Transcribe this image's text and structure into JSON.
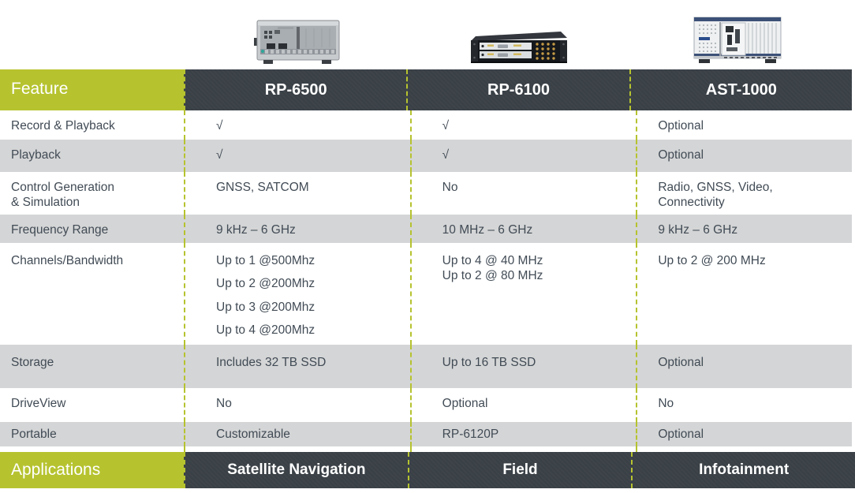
{
  "colors": {
    "accent_green": "#b6c32f",
    "header_dark": "#394046",
    "row_stripe": "#d4d5d6",
    "body_text": "#414b55"
  },
  "header": {
    "feature_label": "Feature"
  },
  "applications_label": "Applications",
  "products": [
    {
      "name": "RP-6500",
      "image": "benchtop-recorder-image",
      "application": "Satellite Navigation"
    },
    {
      "name": "RP-6100",
      "image": "rackmount-recorder-image",
      "application": "Field"
    },
    {
      "name": "AST-1000",
      "image": "pxi-chassis-image",
      "application": "Infotainment"
    }
  ],
  "rows": [
    {
      "feature": [
        "Record & Playback"
      ],
      "values": [
        [
          "√"
        ],
        [
          "√"
        ],
        [
          "Optional"
        ]
      ]
    },
    {
      "feature": [
        "Playback"
      ],
      "values": [
        [
          "√"
        ],
        [
          "√"
        ],
        [
          "Optional"
        ]
      ]
    },
    {
      "feature": [
        "Control Generation",
        "& Simulation"
      ],
      "values": [
        [
          "GNSS, SATCOM"
        ],
        [
          "No"
        ],
        [
          "Radio, GNSS, Video,",
          "Connectivity"
        ]
      ]
    },
    {
      "feature": [
        "Frequency Range"
      ],
      "values": [
        [
          "9 kHz – 6 GHz"
        ],
        [
          "10 MHz – 6 GHz"
        ],
        [
          "9 kHz – 6 GHz"
        ]
      ]
    },
    {
      "feature": [
        "Channels/Bandwidth"
      ],
      "values": [
        [
          "Up to 1 @500Mhz",
          "Up to 2 @200Mhz",
          "Up to 3 @200Mhz",
          "Up to 4 @200Mhz"
        ],
        [
          "Up to 4 @ 40 MHz",
          "Up to 2 @ 80 MHz"
        ],
        [
          "Up to 2 @ 200 MHz"
        ]
      ]
    },
    {
      "feature": [
        "Storage"
      ],
      "values": [
        [
          "Includes 32 TB SSD"
        ],
        [
          "Up to 16 TB SSD"
        ],
        [
          "Optional"
        ]
      ]
    },
    {
      "feature": [
        "DriveView"
      ],
      "values": [
        [
          "No"
        ],
        [
          "Optional"
        ],
        [
          "No"
        ]
      ]
    },
    {
      "feature": [
        "Portable"
      ],
      "values": [
        [
          "Customizable"
        ],
        [
          "RP-6120P"
        ],
        [
          "Optional"
        ]
      ]
    }
  ]
}
